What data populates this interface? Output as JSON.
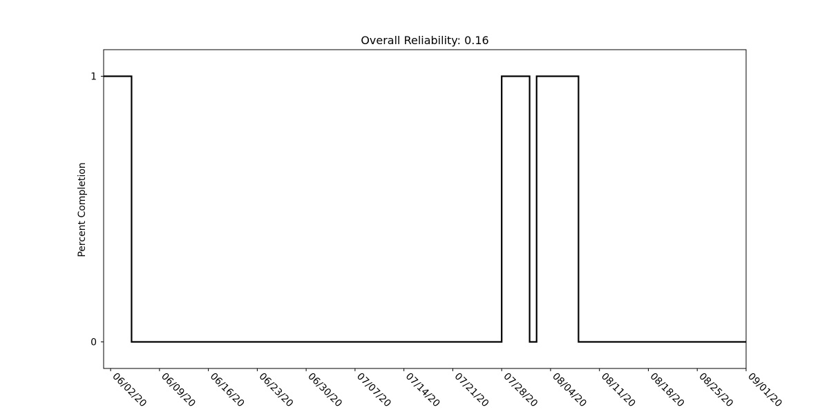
{
  "chart_data": {
    "type": "line",
    "title": "Overall Reliability: 0.16",
    "xlabel": "",
    "ylabel": "Percent Completion",
    "y_ticks": [
      {
        "value": 0,
        "label": "0"
      },
      {
        "value": 1,
        "label": "1"
      }
    ],
    "x_ticks": [
      "06/02/20",
      "06/09/20",
      "06/16/20",
      "06/23/20",
      "06/30/20",
      "07/07/20",
      "07/14/20",
      "07/21/20",
      "07/28/20",
      "08/04/20",
      "08/11/20",
      "08/18/20",
      "08/25/20",
      "09/01/20"
    ],
    "xlim": [
      "2020-06-01",
      "2020-09-01"
    ],
    "ylim": [
      -0.1,
      1.1
    ],
    "grid": false,
    "line_color": "#000000",
    "series": [
      {
        "x": [
          "2020-06-01",
          "2020-06-05",
          "2020-06-05",
          "2020-07-28",
          "2020-07-28",
          "2020-08-01",
          "2020-08-01",
          "2020-08-02",
          "2020-08-02",
          "2020-08-08",
          "2020-08-08",
          "2020-09-01"
        ],
        "y": [
          1,
          1,
          0,
          0,
          1,
          1,
          0,
          0,
          1,
          1,
          0,
          0
        ]
      }
    ]
  }
}
